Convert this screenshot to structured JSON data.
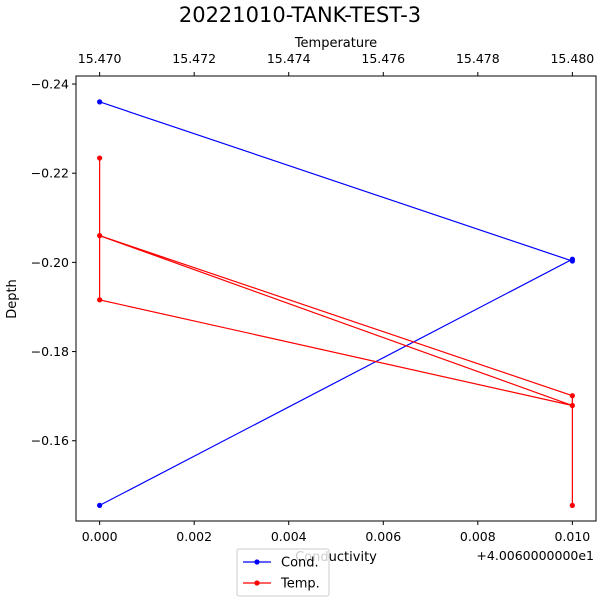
{
  "chart_data": {
    "type": "scatter",
    "title": "20221010-TANK-TEST-3",
    "bottom_axis": {
      "label": "Conductivity",
      "ticks": [
        "0.000",
        "0.002",
        "0.004",
        "0.006",
        "0.008",
        "0.010"
      ],
      "tick_values": [
        0.0,
        0.002,
        0.004,
        0.006,
        0.008,
        0.01
      ],
      "offset_text": "+4.0060000000e1",
      "range": [
        -0.0005,
        0.0105
      ]
    },
    "top_axis": {
      "label": "Temperature",
      "ticks": [
        "15.470",
        "15.472",
        "15.474",
        "15.476",
        "15.478",
        "15.480"
      ],
      "tick_values": [
        15.47,
        15.472,
        15.474,
        15.476,
        15.478,
        15.48
      ],
      "range": [
        15.4695,
        15.4805
      ]
    },
    "y_axis": {
      "label": "Depth",
      "ticks": [
        "−0.24",
        "−0.22",
        "−0.20",
        "−0.18",
        "−0.16"
      ],
      "tick_values": [
        -0.24,
        -0.22,
        -0.2,
        -0.18,
        -0.16
      ],
      "range": [
        -0.142,
        -0.2418
      ],
      "inverted": true
    },
    "grid": false,
    "legend": {
      "placement": "bottom-center",
      "entries": [
        "Cond.",
        "Temp."
      ]
    },
    "series": [
      {
        "name": "Cond.",
        "color": "#0000ff",
        "axis": "bottom",
        "x": [
          0.0,
          0.01,
          0.01,
          0.0
        ],
        "y": [
          -0.236,
          -0.2003,
          -0.2007,
          -0.1455
        ]
      },
      {
        "name": "Temp.",
        "color": "#ff0000",
        "axis": "top",
        "x": [
          15.47,
          15.47,
          15.48,
          15.47,
          15.48,
          15.48
        ],
        "y": [
          -0.2234,
          -0.1916,
          -0.1679,
          -0.206,
          -0.1701,
          -0.1455
        ]
      }
    ]
  }
}
